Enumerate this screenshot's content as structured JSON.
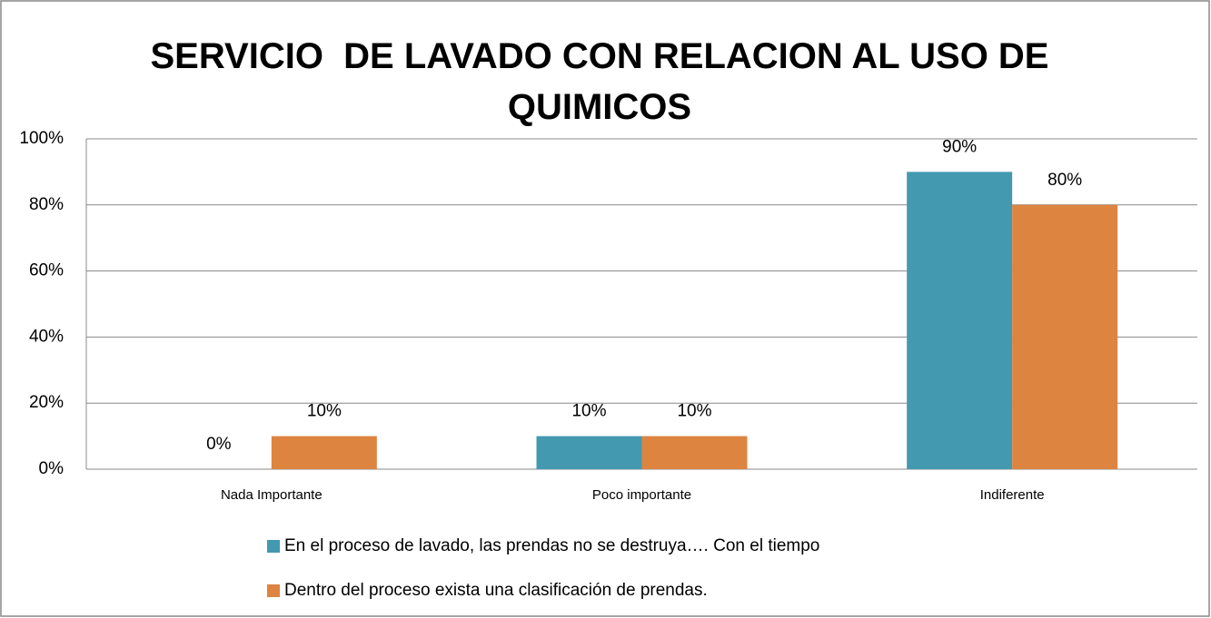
{
  "chart_data": {
    "type": "bar",
    "title": "SERVICIO  DE LAVADO CON RELACION AL USO DE QUIMICOS",
    "categories": [
      "Nada Importante",
      "Poco  importante",
      "Indiferente"
    ],
    "series": [
      {
        "name": "En el proceso de lavado, las prendas no se destruya…. Con el tiempo",
        "color": "#4399b0",
        "values": [
          0,
          10,
          90
        ],
        "value_labels": [
          "0%",
          "10%",
          "90%"
        ]
      },
      {
        "name": "Dentro del proceso exista una clasificación de prendas.",
        "color": "#dd8440",
        "values": [
          10,
          10,
          80
        ],
        "value_labels": [
          "10%",
          "10%",
          "80%"
        ]
      }
    ],
    "ylim": [
      0,
      100
    ],
    "yticks": [
      {
        "value": 0,
        "label": "0%"
      },
      {
        "value": 20,
        "label": "20%"
      },
      {
        "value": 40,
        "label": "40%"
      },
      {
        "value": 60,
        "label": "60%"
      },
      {
        "value": 80,
        "label": "80%"
      },
      {
        "value": 100,
        "label": "100%"
      }
    ],
    "grid": true,
    "legend": "bottom"
  }
}
